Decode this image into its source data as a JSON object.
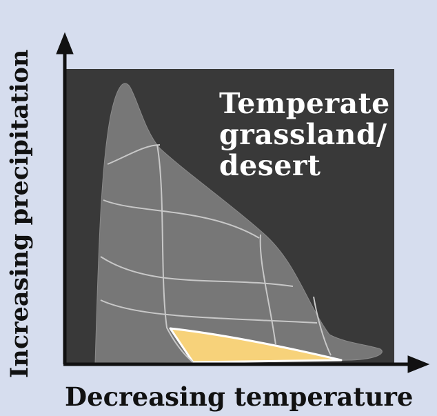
{
  "diagram": {
    "biome_label_lines": [
      "Temperate",
      "grassland/",
      "desert"
    ],
    "x_axis_label": "Decreasing temperature",
    "y_axis_label": "Increasing precipitation",
    "colors": {
      "background": "#d6ddee",
      "plot_area": "#393939",
      "climate_region": "#777777",
      "region_lines": "#c8c8c8",
      "highlighted_biome": "#f7d27a",
      "highlight_outline": "#ffffff",
      "axis": "#111111",
      "label_text": "#ffffff"
    }
  }
}
